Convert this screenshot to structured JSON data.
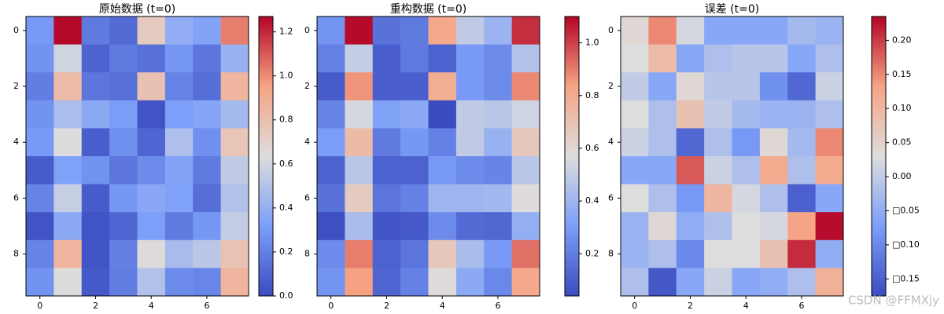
{
  "chart_data": [
    {
      "type": "heatmap",
      "title": "原始数据 (t=0)",
      "colormap": "coolwarm",
      "rows": 10,
      "cols": 8,
      "xticks": [
        0,
        2,
        4,
        6
      ],
      "yticks": [
        0,
        2,
        4,
        6,
        8
      ],
      "colorbar": {
        "range": [
          0.0,
          1.27
        ],
        "ticks": [
          "0.0",
          "0.2",
          "0.4",
          "0.6",
          "0.8",
          "1.0",
          "1.2"
        ],
        "tick_values": [
          0.0,
          0.2,
          0.4,
          0.6,
          0.8,
          1.0,
          1.2
        ]
      },
      "values": [
        [
          0.3,
          1.26,
          0.18,
          0.12,
          0.74,
          0.39,
          0.34,
          1.03
        ],
        [
          0.27,
          0.59,
          0.09,
          0.18,
          0.14,
          0.29,
          0.16,
          0.41
        ],
        [
          0.19,
          0.82,
          0.16,
          0.14,
          0.79,
          0.21,
          0.13,
          0.86
        ],
        [
          0.27,
          0.47,
          0.37,
          0.31,
          0.03,
          0.32,
          0.35,
          0.45
        ],
        [
          0.3,
          0.64,
          0.07,
          0.26,
          0.1,
          0.48,
          0.26,
          0.77
        ],
        [
          0.06,
          0.33,
          0.27,
          0.16,
          0.24,
          0.34,
          0.18,
          0.54
        ],
        [
          0.21,
          0.56,
          0.06,
          0.29,
          0.36,
          0.33,
          0.13,
          0.49
        ],
        [
          0.03,
          0.37,
          0.03,
          0.1,
          0.32,
          0.18,
          0.29,
          0.55
        ],
        [
          0.21,
          0.86,
          0.03,
          0.2,
          0.65,
          0.46,
          0.52,
          0.78
        ],
        [
          0.27,
          0.64,
          0.05,
          0.19,
          0.49,
          0.24,
          0.22,
          0.86
        ]
      ]
    },
    {
      "type": "heatmap",
      "title": "重构数据 (t=0)",
      "colormap": "coolwarm",
      "rows": 10,
      "cols": 8,
      "xticks": [
        0,
        2,
        4,
        6
      ],
      "yticks": [
        0,
        2,
        4,
        6,
        8
      ],
      "colorbar": {
        "range": [
          0.04,
          1.1
        ],
        "ticks": [
          "0.2",
          "0.4",
          "0.6",
          "0.8",
          "1.0"
        ],
        "tick_values": [
          0.2,
          0.4,
          0.6,
          0.8,
          1.0
        ]
      },
      "values": [
        [
          0.27,
          1.09,
          0.16,
          0.19,
          0.81,
          0.49,
          0.39,
          1.03
        ],
        [
          0.21,
          0.5,
          0.1,
          0.19,
          0.11,
          0.29,
          0.24,
          0.45
        ],
        [
          0.09,
          0.86,
          0.1,
          0.1,
          0.79,
          0.29,
          0.24,
          0.88
        ],
        [
          0.22,
          0.55,
          0.32,
          0.35,
          0.03,
          0.49,
          0.47,
          0.53
        ],
        [
          0.3,
          0.73,
          0.19,
          0.28,
          0.21,
          0.49,
          0.38,
          0.67
        ],
        [
          0.11,
          0.47,
          0.11,
          0.11,
          0.29,
          0.24,
          0.22,
          0.47
        ],
        [
          0.16,
          0.66,
          0.17,
          0.21,
          0.4,
          0.4,
          0.41,
          0.58
        ],
        [
          0.05,
          0.43,
          0.07,
          0.08,
          0.24,
          0.14,
          0.13,
          0.37
        ],
        [
          0.24,
          0.9,
          0.11,
          0.17,
          0.67,
          0.43,
          0.29,
          0.92
        ],
        [
          0.27,
          0.84,
          0.12,
          0.21,
          0.58,
          0.35,
          0.23,
          0.81
        ]
      ]
    },
    {
      "type": "heatmap",
      "title": "误差 (t=0)",
      "colormap": "coolwarm",
      "rows": 10,
      "cols": 8,
      "xticks": [
        0,
        2,
        4,
        6
      ],
      "yticks": [
        0,
        2,
        4,
        6,
        8
      ],
      "colorbar": {
        "range": [
          -0.175,
          0.235
        ],
        "ticks": [
          "0.20",
          "0.15",
          "0.10",
          "0.05",
          "0.00",
          "□0.05",
          "□0.10",
          "□0.15"
        ],
        "tick_values": [
          0.2,
          0.15,
          0.1,
          0.05,
          0.0,
          -0.05,
          -0.1,
          -0.15
        ]
      },
      "values": [
        [
          0.04,
          0.15,
          0.02,
          -0.06,
          -0.06,
          -0.06,
          -0.03,
          -0.04
        ],
        [
          0.03,
          0.09,
          -0.06,
          -0.02,
          -0.01,
          -0.01,
          -0.06,
          -0.02
        ],
        [
          0.0,
          -0.06,
          0.04,
          -0.01,
          -0.01,
          -0.09,
          -0.14,
          0.01
        ],
        [
          0.03,
          -0.02,
          0.08,
          0.0,
          -0.03,
          -0.04,
          -0.04,
          -0.02
        ],
        [
          0.01,
          -0.02,
          -0.14,
          -0.02,
          -0.08,
          0.04,
          -0.03,
          0.15
        ],
        [
          -0.06,
          -0.06,
          0.18,
          0.01,
          -0.02,
          0.12,
          -0.02,
          0.12
        ],
        [
          0.03,
          -0.02,
          -0.08,
          0.1,
          0.02,
          -0.02,
          -0.15,
          -0.06
        ],
        [
          -0.04,
          0.04,
          -0.05,
          -0.02,
          0.03,
          0.02,
          0.13,
          0.23
        ],
        [
          -0.04,
          -0.02,
          -0.1,
          0.03,
          0.03,
          0.08,
          0.21,
          -0.05
        ],
        [
          -0.02,
          -0.16,
          -0.06,
          0.01,
          -0.06,
          -0.05,
          -0.02,
          0.11
        ]
      ]
    }
  ],
  "watermark": "CSDN @FFMXjy"
}
